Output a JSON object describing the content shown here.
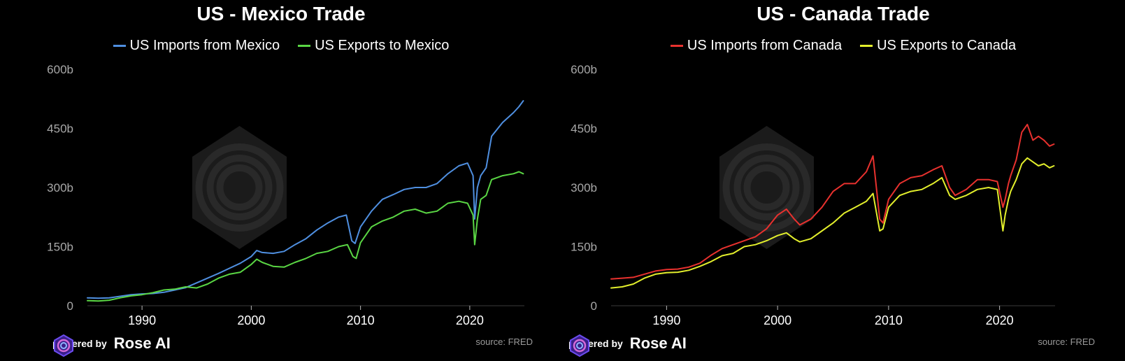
{
  "colors": {
    "bg": "#000000",
    "grid": "#2a2a2a",
    "tick": "#a8a8a8",
    "axis": "#cccccc"
  },
  "footer": {
    "powered_by": "powered by",
    "brand": "Rose AI",
    "source": "source: FRED"
  },
  "chart_data": [
    {
      "type": "line",
      "title": "US - Mexico Trade",
      "xlabel": "",
      "ylabel": "",
      "xlim": [
        1985,
        2025
      ],
      "ylim": [
        0,
        600
      ],
      "yticks": [
        0,
        150,
        300,
        450,
        600
      ],
      "ytick_labels": [
        "0",
        "150b",
        "300b",
        "450b",
        "600b"
      ],
      "xticks": [
        1990,
        2000,
        2010,
        2020
      ],
      "xtick_labels": [
        "1990",
        "2000",
        "2010",
        "2020"
      ],
      "legend": "top-center",
      "series": [
        {
          "name": "US Imports from Mexico",
          "color": "#4f8fe0",
          "x": [
            1985,
            1986,
            1987,
            1988,
            1989,
            1990,
            1991,
            1992,
            1993,
            1994,
            1995,
            1996,
            1997,
            1998,
            1999,
            2000,
            2000.5,
            2001,
            2002,
            2003,
            2004,
            2005,
            2006,
            2007,
            2008,
            2008.7,
            2009.2,
            2009.5,
            2010,
            2011,
            2012,
            2013,
            2014,
            2015,
            2016,
            2017,
            2018,
            2019,
            2019.8,
            2020.3,
            2020.45,
            2020.7,
            2021,
            2021.5,
            2022,
            2023,
            2024,
            2024.5,
            2024.9
          ],
          "y": [
            20,
            19,
            20,
            24,
            28,
            30,
            31,
            34,
            40,
            46,
            58,
            70,
            82,
            95,
            108,
            125,
            140,
            135,
            133,
            138,
            155,
            170,
            192,
            210,
            225,
            230,
            165,
            158,
            200,
            240,
            270,
            282,
            295,
            300,
            300,
            310,
            335,
            355,
            362,
            330,
            220,
            300,
            330,
            350,
            430,
            465,
            490,
            505,
            520
          ]
        },
        {
          "name": "US Exports to Mexico",
          "color": "#5ad644",
          "x": [
            1985,
            1986,
            1987,
            1988,
            1989,
            1990,
            1991,
            1992,
            1993,
            1994,
            1995,
            1996,
            1997,
            1998,
            1999,
            2000,
            2000.5,
            2001,
            2002,
            2003,
            2004,
            2005,
            2006,
            2007,
            2008,
            2008.8,
            2009.3,
            2009.6,
            2010,
            2011,
            2012,
            2013,
            2014,
            2015,
            2016,
            2017,
            2018,
            2019,
            2019.8,
            2020.3,
            2020.45,
            2020.7,
            2021,
            2021.5,
            2022,
            2023,
            2024,
            2024.5,
            2024.9
          ],
          "y": [
            13,
            12,
            14,
            20,
            25,
            28,
            33,
            40,
            42,
            48,
            45,
            55,
            70,
            80,
            85,
            105,
            118,
            110,
            100,
            98,
            110,
            120,
            133,
            138,
            150,
            155,
            125,
            120,
            160,
            200,
            215,
            225,
            240,
            245,
            235,
            240,
            260,
            265,
            260,
            230,
            155,
            220,
            270,
            280,
            320,
            330,
            335,
            340,
            335
          ]
        }
      ]
    },
    {
      "type": "line",
      "title": "US - Canada Trade",
      "xlabel": "",
      "ylabel": "",
      "xlim": [
        1985,
        2025
      ],
      "ylim": [
        0,
        600
      ],
      "yticks": [
        0,
        150,
        300,
        450,
        600
      ],
      "ytick_labels": [
        "0",
        "150b",
        "300b",
        "450b",
        "600b"
      ],
      "xticks": [
        1990,
        2000,
        2010,
        2020
      ],
      "xtick_labels": [
        "1990",
        "2000",
        "2010",
        "2020"
      ],
      "legend": "top-center",
      "series": [
        {
          "name": "US Imports from Canada",
          "color": "#e8312e",
          "x": [
            1985,
            1986,
            1987,
            1988,
            1989,
            1990,
            1991,
            1992,
            1993,
            1994,
            1995,
            1996,
            1997,
            1998,
            1999,
            2000,
            2000.8,
            2001.5,
            2002,
            2003,
            2004,
            2005,
            2006,
            2007,
            2008,
            2008.6,
            2009.2,
            2009.5,
            2010,
            2011,
            2012,
            2013,
            2014,
            2014.8,
            2015.5,
            2016,
            2017,
            2018,
            2019,
            2019.8,
            2020.3,
            2020.5,
            2020.8,
            2021,
            2021.5,
            2022,
            2022.5,
            2023,
            2023.5,
            2024,
            2024.5,
            2024.9
          ],
          "y": [
            68,
            70,
            72,
            80,
            88,
            92,
            93,
            98,
            108,
            128,
            145,
            155,
            165,
            175,
            195,
            230,
            245,
            220,
            205,
            220,
            250,
            290,
            310,
            310,
            340,
            380,
            220,
            210,
            270,
            310,
            325,
            330,
            345,
            355,
            300,
            280,
            295,
            320,
            320,
            315,
            250,
            270,
            310,
            330,
            370,
            440,
            460,
            420,
            430,
            420,
            405,
            410
          ]
        },
        {
          "name": "US Exports to Canada",
          "color": "#e3ef2c",
          "x": [
            1985,
            1986,
            1987,
            1988,
            1989,
            1990,
            1991,
            1992,
            1993,
            1994,
            1995,
            1996,
            1997,
            1998,
            1999,
            2000,
            2000.8,
            2001.5,
            2002,
            2003,
            2004,
            2005,
            2006,
            2007,
            2008,
            2008.6,
            2009.2,
            2009.5,
            2010,
            2011,
            2012,
            2013,
            2014,
            2014.8,
            2015.5,
            2016,
            2017,
            2018,
            2019,
            2019.8,
            2020.3,
            2020.5,
            2020.8,
            2021,
            2021.5,
            2022,
            2022.5,
            2023,
            2023.5,
            2024,
            2024.5,
            2024.9
          ],
          "y": [
            45,
            48,
            55,
            70,
            80,
            84,
            85,
            90,
            100,
            112,
            127,
            133,
            150,
            155,
            165,
            178,
            185,
            170,
            162,
            170,
            190,
            210,
            235,
            250,
            265,
            285,
            190,
            195,
            250,
            280,
            290,
            295,
            310,
            325,
            280,
            270,
            280,
            295,
            300,
            295,
            190,
            230,
            270,
            290,
            320,
            360,
            375,
            365,
            355,
            360,
            350,
            355
          ]
        }
      ]
    }
  ]
}
